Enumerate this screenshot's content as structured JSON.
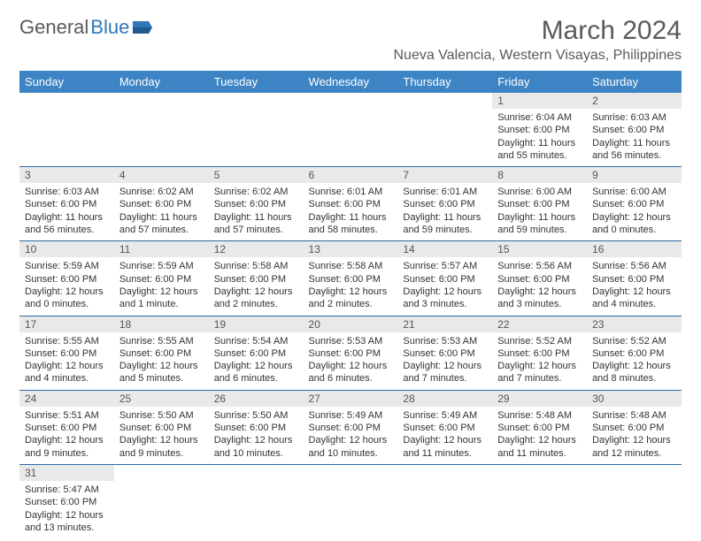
{
  "logo": {
    "text1": "General",
    "text2": "Blue"
  },
  "title": "March 2024",
  "location": "Nueva Valencia, Western Visayas, Philippines",
  "colors": {
    "header_bg": "#3d84c4",
    "header_text": "#ffffff",
    "daynum_bg": "#e9e9e9",
    "row_border": "#2f6aa8",
    "logo_gray": "#5a5a5a",
    "logo_blue": "#2f77b8"
  },
  "weekdays": [
    "Sunday",
    "Monday",
    "Tuesday",
    "Wednesday",
    "Thursday",
    "Friday",
    "Saturday"
  ],
  "weeks": [
    [
      null,
      null,
      null,
      null,
      null,
      {
        "n": "1",
        "sr": "6:04 AM",
        "ss": "6:00 PM",
        "dl": "11 hours and 55 minutes."
      },
      {
        "n": "2",
        "sr": "6:03 AM",
        "ss": "6:00 PM",
        "dl": "11 hours and 56 minutes."
      }
    ],
    [
      {
        "n": "3",
        "sr": "6:03 AM",
        "ss": "6:00 PM",
        "dl": "11 hours and 56 minutes."
      },
      {
        "n": "4",
        "sr": "6:02 AM",
        "ss": "6:00 PM",
        "dl": "11 hours and 57 minutes."
      },
      {
        "n": "5",
        "sr": "6:02 AM",
        "ss": "6:00 PM",
        "dl": "11 hours and 57 minutes."
      },
      {
        "n": "6",
        "sr": "6:01 AM",
        "ss": "6:00 PM",
        "dl": "11 hours and 58 minutes."
      },
      {
        "n": "7",
        "sr": "6:01 AM",
        "ss": "6:00 PM",
        "dl": "11 hours and 59 minutes."
      },
      {
        "n": "8",
        "sr": "6:00 AM",
        "ss": "6:00 PM",
        "dl": "11 hours and 59 minutes."
      },
      {
        "n": "9",
        "sr": "6:00 AM",
        "ss": "6:00 PM",
        "dl": "12 hours and 0 minutes."
      }
    ],
    [
      {
        "n": "10",
        "sr": "5:59 AM",
        "ss": "6:00 PM",
        "dl": "12 hours and 0 minutes."
      },
      {
        "n": "11",
        "sr": "5:59 AM",
        "ss": "6:00 PM",
        "dl": "12 hours and 1 minute."
      },
      {
        "n": "12",
        "sr": "5:58 AM",
        "ss": "6:00 PM",
        "dl": "12 hours and 2 minutes."
      },
      {
        "n": "13",
        "sr": "5:58 AM",
        "ss": "6:00 PM",
        "dl": "12 hours and 2 minutes."
      },
      {
        "n": "14",
        "sr": "5:57 AM",
        "ss": "6:00 PM",
        "dl": "12 hours and 3 minutes."
      },
      {
        "n": "15",
        "sr": "5:56 AM",
        "ss": "6:00 PM",
        "dl": "12 hours and 3 minutes."
      },
      {
        "n": "16",
        "sr": "5:56 AM",
        "ss": "6:00 PM",
        "dl": "12 hours and 4 minutes."
      }
    ],
    [
      {
        "n": "17",
        "sr": "5:55 AM",
        "ss": "6:00 PM",
        "dl": "12 hours and 4 minutes."
      },
      {
        "n": "18",
        "sr": "5:55 AM",
        "ss": "6:00 PM",
        "dl": "12 hours and 5 minutes."
      },
      {
        "n": "19",
        "sr": "5:54 AM",
        "ss": "6:00 PM",
        "dl": "12 hours and 6 minutes."
      },
      {
        "n": "20",
        "sr": "5:53 AM",
        "ss": "6:00 PM",
        "dl": "12 hours and 6 minutes."
      },
      {
        "n": "21",
        "sr": "5:53 AM",
        "ss": "6:00 PM",
        "dl": "12 hours and 7 minutes."
      },
      {
        "n": "22",
        "sr": "5:52 AM",
        "ss": "6:00 PM",
        "dl": "12 hours and 7 minutes."
      },
      {
        "n": "23",
        "sr": "5:52 AM",
        "ss": "6:00 PM",
        "dl": "12 hours and 8 minutes."
      }
    ],
    [
      {
        "n": "24",
        "sr": "5:51 AM",
        "ss": "6:00 PM",
        "dl": "12 hours and 9 minutes."
      },
      {
        "n": "25",
        "sr": "5:50 AM",
        "ss": "6:00 PM",
        "dl": "12 hours and 9 minutes."
      },
      {
        "n": "26",
        "sr": "5:50 AM",
        "ss": "6:00 PM",
        "dl": "12 hours and 10 minutes."
      },
      {
        "n": "27",
        "sr": "5:49 AM",
        "ss": "6:00 PM",
        "dl": "12 hours and 10 minutes."
      },
      {
        "n": "28",
        "sr": "5:49 AM",
        "ss": "6:00 PM",
        "dl": "12 hours and 11 minutes."
      },
      {
        "n": "29",
        "sr": "5:48 AM",
        "ss": "6:00 PM",
        "dl": "12 hours and 11 minutes."
      },
      {
        "n": "30",
        "sr": "5:48 AM",
        "ss": "6:00 PM",
        "dl": "12 hours and 12 minutes."
      }
    ],
    [
      {
        "n": "31",
        "sr": "5:47 AM",
        "ss": "6:00 PM",
        "dl": "12 hours and 13 minutes."
      },
      null,
      null,
      null,
      null,
      null,
      null
    ]
  ],
  "labels": {
    "sunrise": "Sunrise:",
    "sunset": "Sunset:",
    "daylight": "Daylight:"
  }
}
